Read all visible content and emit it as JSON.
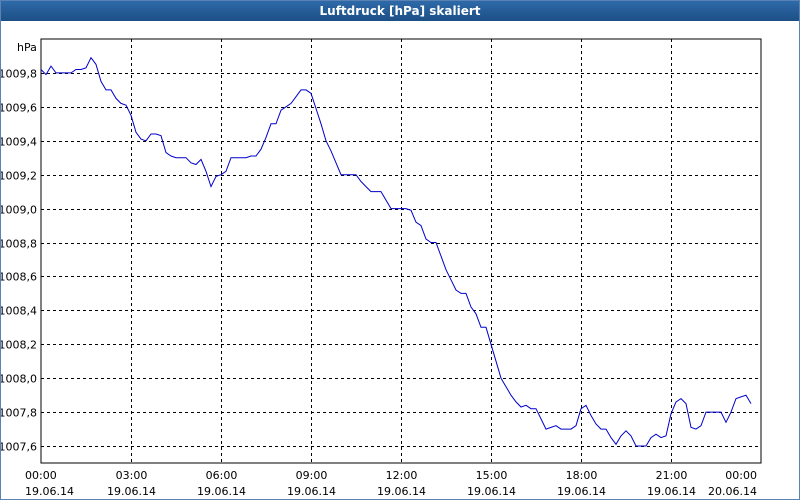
{
  "window": {
    "title": "Luftdruck [hPa] skaliert"
  },
  "colors": {
    "title_bar": "#1d4f86",
    "line": "#0000cc",
    "grid": "#000000"
  },
  "chart_data": {
    "type": "line",
    "title": "Luftdruck [hPa] skaliert",
    "ylabel": "hPa",
    "xlabel": "",
    "ylim": [
      1007.5,
      1010.0
    ],
    "y_ticks": [
      1007.6,
      1007.8,
      1008.0,
      1008.2,
      1008.4,
      1008.6,
      1008.8,
      1009.0,
      1009.2,
      1009.4,
      1009.6,
      1009.8
    ],
    "y_tick_labels": [
      "1007,6",
      "1007,8",
      "1008,0",
      "1008,2",
      "1008,4",
      "1008,6",
      "1008,8",
      "1009,0",
      "1009,2",
      "1009,4",
      "1009,6",
      "1009,8"
    ],
    "xlim": [
      "19.06.14 00:00",
      "20.06.14 00:00"
    ],
    "x_tick_labels": [
      {
        "time": "00:00",
        "date": "19.06.14"
      },
      {
        "time": "03:00",
        "date": "19.06.14"
      },
      {
        "time": "06:00",
        "date": "19.06.14"
      },
      {
        "time": "09:00",
        "date": "19.06.14"
      },
      {
        "time": "12:00",
        "date": "19.06.14"
      },
      {
        "time": "15:00",
        "date": "19.06.14"
      },
      {
        "time": "18:00",
        "date": "19.06.14"
      },
      {
        "time": "21:00",
        "date": "19.06.14"
      },
      {
        "time": "00:00",
        "date": "20.06.14"
      }
    ],
    "grid": true,
    "legend": "none",
    "series": [
      {
        "color": "#0000cc",
        "points": [
          [
            "00:00",
            1009.82
          ],
          [
            "00:10",
            1009.79
          ],
          [
            "00:20",
            1009.84
          ],
          [
            "00:30",
            1009.8
          ],
          [
            "00:40",
            1009.8
          ],
          [
            "00:50",
            1009.8
          ],
          [
            "01:00",
            1009.8
          ],
          [
            "01:10",
            1009.82
          ],
          [
            "01:20",
            1009.82
          ],
          [
            "01:30",
            1009.83
          ],
          [
            "01:40",
            1009.89
          ],
          [
            "01:50",
            1009.85
          ],
          [
            "02:00",
            1009.75
          ],
          [
            "02:10",
            1009.7
          ],
          [
            "02:20",
            1009.7
          ],
          [
            "02:30",
            1009.65
          ],
          [
            "02:40",
            1009.62
          ],
          [
            "02:50",
            1009.61
          ],
          [
            "03:00",
            1009.55
          ],
          [
            "03:10",
            1009.45
          ],
          [
            "03:20",
            1009.41
          ],
          [
            "03:30",
            1009.4
          ],
          [
            "03:40",
            1009.44
          ],
          [
            "03:50",
            1009.44
          ],
          [
            "04:00",
            1009.43
          ],
          [
            "04:10",
            1009.33
          ],
          [
            "04:20",
            1009.31
          ],
          [
            "04:30",
            1009.3
          ],
          [
            "04:40",
            1009.3
          ],
          [
            "04:50",
            1009.3
          ],
          [
            "05:00",
            1009.27
          ],
          [
            "05:10",
            1009.26
          ],
          [
            "05:20",
            1009.29
          ],
          [
            "05:30",
            1009.22
          ],
          [
            "05:40",
            1009.13
          ],
          [
            "05:50",
            1009.19
          ],
          [
            "06:00",
            1009.2
          ],
          [
            "06:10",
            1009.22
          ],
          [
            "06:20",
            1009.3
          ],
          [
            "06:30",
            1009.3
          ],
          [
            "06:40",
            1009.3
          ],
          [
            "06:50",
            1009.3
          ],
          [
            "07:00",
            1009.31
          ],
          [
            "07:10",
            1009.31
          ],
          [
            "07:20",
            1009.35
          ],
          [
            "07:30",
            1009.42
          ],
          [
            "07:40",
            1009.5
          ],
          [
            "07:50",
            1009.5
          ],
          [
            "08:00",
            1009.58
          ],
          [
            "08:10",
            1009.6
          ],
          [
            "08:20",
            1009.62
          ],
          [
            "08:30",
            1009.66
          ],
          [
            "08:40",
            1009.7
          ],
          [
            "08:50",
            1009.7
          ],
          [
            "09:00",
            1009.68
          ],
          [
            "09:10",
            1009.59
          ],
          [
            "09:20",
            1009.5
          ],
          [
            "09:30",
            1009.4
          ],
          [
            "09:40",
            1009.34
          ],
          [
            "09:50",
            1009.27
          ],
          [
            "10:00",
            1009.2
          ],
          [
            "10:10",
            1009.2
          ],
          [
            "10:20",
            1009.2
          ],
          [
            "10:30",
            1009.2
          ],
          [
            "10:40",
            1009.16
          ],
          [
            "10:50",
            1009.13
          ],
          [
            "11:00",
            1009.1
          ],
          [
            "11:10",
            1009.1
          ],
          [
            "11:20",
            1009.1
          ],
          [
            "11:30",
            1009.05
          ],
          [
            "11:40",
            1009.0
          ],
          [
            "11:50",
            1009.0
          ],
          [
            "12:00",
            1009.0
          ],
          [
            "12:10",
            1009.0
          ],
          [
            "12:20",
            1008.99
          ],
          [
            "12:30",
            1008.92
          ],
          [
            "12:40",
            1008.9
          ],
          [
            "12:50",
            1008.82
          ],
          [
            "13:00",
            1008.8
          ],
          [
            "13:10",
            1008.8
          ],
          [
            "13:20",
            1008.72
          ],
          [
            "13:30",
            1008.64
          ],
          [
            "13:40",
            1008.58
          ],
          [
            "13:50",
            1008.52
          ],
          [
            "14:00",
            1008.5
          ],
          [
            "14:10",
            1008.5
          ],
          [
            "14:20",
            1008.42
          ],
          [
            "14:30",
            1008.38
          ],
          [
            "14:40",
            1008.3
          ],
          [
            "14:50",
            1008.3
          ],
          [
            "15:00",
            1008.2
          ],
          [
            "15:10",
            1008.1
          ],
          [
            "15:20",
            1008.0
          ],
          [
            "15:30",
            1007.95
          ],
          [
            "15:40",
            1007.9
          ],
          [
            "15:50",
            1007.86
          ],
          [
            "16:00",
            1007.83
          ],
          [
            "16:10",
            1007.84
          ],
          [
            "16:20",
            1007.82
          ],
          [
            "16:30",
            1007.82
          ],
          [
            "16:40",
            1007.76
          ],
          [
            "16:50",
            1007.7
          ],
          [
            "17:00",
            1007.71
          ],
          [
            "17:10",
            1007.72
          ],
          [
            "17:20",
            1007.7
          ],
          [
            "17:30",
            1007.7
          ],
          [
            "17:40",
            1007.7
          ],
          [
            "17:50",
            1007.72
          ],
          [
            "18:00",
            1007.82
          ],
          [
            "18:10",
            1007.84
          ],
          [
            "18:20",
            1007.78
          ],
          [
            "18:30",
            1007.73
          ],
          [
            "18:40",
            1007.7
          ],
          [
            "18:50",
            1007.7
          ],
          [
            "19:00",
            1007.65
          ],
          [
            "19:10",
            1007.61
          ],
          [
            "19:20",
            1007.66
          ],
          [
            "19:30",
            1007.69
          ],
          [
            "19:40",
            1007.66
          ],
          [
            "19:50",
            1007.6
          ],
          [
            "20:00",
            1007.6
          ],
          [
            "20:10",
            1007.6
          ],
          [
            "20:20",
            1007.65
          ],
          [
            "20:30",
            1007.67
          ],
          [
            "20:40",
            1007.65
          ],
          [
            "20:50",
            1007.66
          ],
          [
            "21:00",
            1007.79
          ],
          [
            "21:10",
            1007.86
          ],
          [
            "21:20",
            1007.88
          ],
          [
            "21:30",
            1007.85
          ],
          [
            "21:40",
            1007.71
          ],
          [
            "21:50",
            1007.7
          ],
          [
            "22:00",
            1007.72
          ],
          [
            "22:10",
            1007.8
          ],
          [
            "22:20",
            1007.8
          ],
          [
            "22:30",
            1007.8
          ],
          [
            "22:40",
            1007.8
          ],
          [
            "22:50",
            1007.74
          ],
          [
            "23:00",
            1007.8
          ],
          [
            "23:10",
            1007.88
          ],
          [
            "23:20",
            1007.89
          ],
          [
            "23:30",
            1007.9
          ],
          [
            "23:40",
            1007.85
          ]
        ]
      }
    ]
  }
}
